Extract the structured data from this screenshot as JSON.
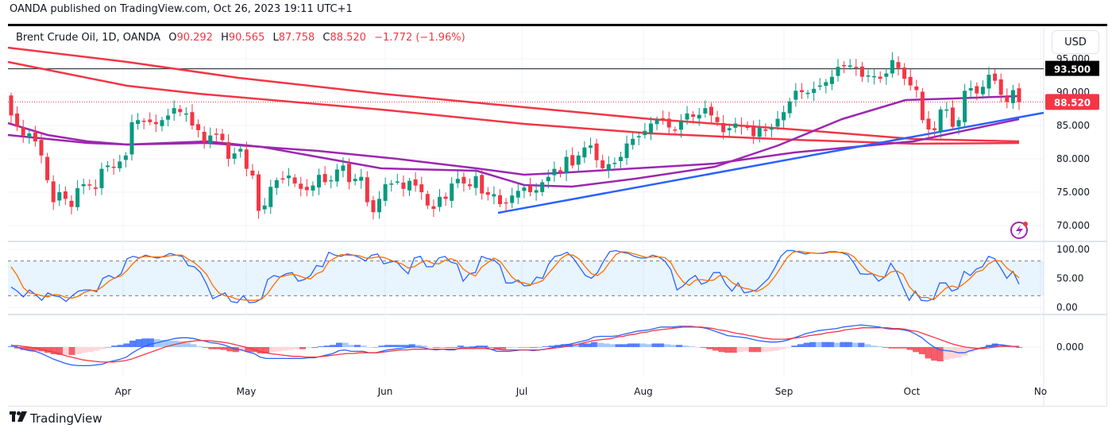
{
  "header": {
    "published": "OANDA published on TradingView.com, Oct 26, 2023 19:11 UTC+1"
  },
  "legend": {
    "symbol": "Brent Crude Oil, 1D, OANDA",
    "open_label": "O",
    "open": "90.292",
    "high_label": "H",
    "high": "90.565",
    "low_label": "L",
    "low": "87.758",
    "close_label": "C",
    "close": "88.520",
    "change": "−1.772",
    "change_pct": "(−1.96%)"
  },
  "currency_button": "USD",
  "footer": {
    "brand": "TradingView",
    "logo_mark": "17"
  },
  "colors": {
    "up": "#089981",
    "down": "#f23645",
    "sma_red": "#f23645",
    "sma_purple": "#9c27b0",
    "trendline": "#2962ff",
    "stoch_k": "#2962ff",
    "stoch_d": "#ff6d00",
    "macd": "#2962ff",
    "signal": "#f23645"
  },
  "chart_data": {
    "type": "candlestick",
    "title": "Brent Crude Oil, 1D, OANDA",
    "price_axis": {
      "ticks": [
        "95.000",
        "90.000",
        "85.000",
        "80.000",
        "75.000",
        "70.000"
      ],
      "tick_values": [
        95,
        90,
        85,
        80,
        75,
        70
      ],
      "range": [
        68,
        97.5
      ]
    },
    "horizontal_line": {
      "value": 93.5,
      "label": "93.500"
    },
    "last_price": {
      "value": 88.52,
      "label": "88.520"
    },
    "time_axis": {
      "labels": [
        "Apr",
        "May",
        "Jun",
        "Jul",
        "Aug",
        "Sep",
        "Oct",
        "No"
      ]
    },
    "closes": [
      86.5,
      84.8,
      83.5,
      83.8,
      82.6,
      80.5,
      76.8,
      73.5,
      75.0,
      74.0,
      72.8,
      75.6,
      76.2,
      76.0,
      75.5,
      78.5,
      79.0,
      78.8,
      79.6,
      80.5,
      85.5,
      85.8,
      85.6,
      85.5,
      85.2,
      85.8,
      86.5,
      87.6,
      87.0,
      86.8,
      85.0,
      84.3,
      82.5,
      83.5,
      83.7,
      82.8,
      80.0,
      80.8,
      81.5,
      78.5,
      77.5,
      72.2,
      73.0,
      75.8,
      76.8,
      77.0,
      77.5,
      76.3,
      75.5,
      75.3,
      76.0,
      77.6,
      76.5,
      76.8,
      78.4,
      79.0,
      76.5,
      77.0,
      77.3,
      73.5,
      72.0,
      74.0,
      76.2,
      76.3,
      76.6,
      75.5,
      76.7,
      76.0,
      75.0,
      73.0,
      72.5,
      74.3,
      74.0,
      76.3,
      77.0,
      76.3,
      75.9,
      77.4,
      74.8,
      74.6,
      74.7,
      73.2,
      73.3,
      74.5,
      75.2,
      75.7,
      75.0,
      75.3,
      76.5,
      77.3,
      78.5,
      78.0,
      80.3,
      79.0,
      80.5,
      81.7,
      82.0,
      79.8,
      78.6,
      79.2,
      79.4,
      80.3,
      82.3,
      83.0,
      83.4,
      84.2,
      85.3,
      85.8,
      86.0,
      84.7,
      84.3,
      85.6,
      86.8,
      86.3,
      86.6,
      87.6,
      86.5,
      85.5,
      84.0,
      84.6,
      85.3,
      84.8,
      84.7,
      83.4,
      84.7,
      84.2,
      84.6,
      86.0,
      87.0,
      88.6,
      90.2,
      90.0,
      89.9,
      90.5,
      91.0,
      91.5,
      92.3,
      93.8,
      94.0,
      94.0,
      93.6,
      92.3,
      92.5,
      92.4,
      92.0,
      92.8,
      94.8,
      93.6,
      92.0,
      91.0,
      90.3,
      85.8,
      84.4,
      84.3,
      87.4,
      87.4,
      84.8,
      85.8,
      90.2,
      90.6,
      89.8,
      90.8,
      92.6,
      91.7,
      89.6,
      88.5,
      90.3,
      88.5
    ],
    "series": [
      {
        "name": "SMA red (upper)",
        "start": 97.3,
        "end": 82.6
      },
      {
        "name": "SMA red (lower)",
        "start": 95.8,
        "end": 82.7
      },
      {
        "name": "SMA purple (fast)",
        "start": 86.0,
        "end": 89.5
      },
      {
        "name": "SMA purple (slow)",
        "start": 84.6,
        "end": 86.2
      },
      {
        "name": "Trendline",
        "from": [
          172,
          72.0
        ],
        "to": [
          999,
          87.2
        ]
      }
    ],
    "stochastic": {
      "axis_ticks": [
        "100.00",
        "50.00",
        "0.00"
      ],
      "bands": [
        80,
        20
      ],
      "k": [
        35,
        28,
        18,
        30,
        22,
        12,
        25,
        20,
        18,
        10,
        20,
        28,
        30,
        30,
        27,
        50,
        55,
        50,
        58,
        84,
        88,
        85,
        90,
        87,
        85,
        88,
        93,
        90,
        88,
        72,
        70,
        60,
        40,
        15,
        20,
        25,
        10,
        8,
        20,
        8,
        9,
        15,
        48,
        55,
        52,
        58,
        60,
        45,
        48,
        55,
        72,
        70,
        95,
        90,
        88,
        92,
        90,
        86,
        80,
        90,
        92,
        75,
        78,
        80,
        68,
        58,
        85,
        88,
        70,
        70,
        85,
        88,
        78,
        75,
        45,
        58,
        60,
        88,
        84,
        82,
        73,
        42,
        42,
        47,
        37,
        38,
        52,
        50,
        75,
        88,
        90,
        95,
        85,
        70,
        55,
        50,
        60,
        80,
        96,
        98,
        95,
        93,
        88,
        85,
        85,
        90,
        87,
        80,
        65,
        30,
        37,
        48,
        55,
        40,
        44,
        60,
        60,
        40,
        28,
        42,
        25,
        27,
        30,
        40,
        50,
        68,
        88,
        98,
        98,
        95,
        92,
        94,
        93,
        94,
        96,
        96,
        94,
        90,
        76,
        58,
        57,
        58,
        45,
        52,
        76,
        60,
        35,
        12,
        28,
        12,
        11,
        15,
        42,
        42,
        28,
        32,
        62,
        55,
        66,
        70,
        88,
        84,
        68,
        50,
        62,
        40
      ],
      "d": [
        70,
        55,
        34,
        25,
        23,
        20,
        18,
        22,
        21,
        17,
        16,
        19,
        26,
        29,
        29,
        36,
        45,
        51,
        54,
        64,
        76,
        86,
        88,
        87,
        87,
        87,
        89,
        90,
        90,
        83,
        77,
        68,
        57,
        38,
        25,
        20,
        18,
        14,
        13,
        12,
        12,
        14,
        24,
        39,
        52,
        55,
        57,
        55,
        51,
        49,
        58,
        62,
        79,
        85,
        91,
        90,
        90,
        89,
        85,
        85,
        87,
        86,
        82,
        78,
        75,
        68,
        70,
        77,
        81,
        76,
        75,
        81,
        84,
        80,
        66,
        59,
        54,
        69,
        77,
        85,
        80,
        66,
        52,
        44,
        42,
        39,
        42,
        46,
        59,
        71,
        84,
        91,
        90,
        83,
        70,
        58,
        55,
        63,
        78,
        91,
        96,
        95,
        92,
        89,
        86,
        87,
        87,
        86,
        77,
        58,
        44,
        38,
        47,
        48,
        46,
        47,
        55,
        53,
        43,
        37,
        33,
        31,
        27,
        32,
        40,
        53,
        69,
        85,
        95,
        97,
        95,
        94,
        93,
        93,
        95,
        95,
        95,
        93,
        87,
        75,
        64,
        58,
        54,
        52,
        61,
        63,
        57,
        36,
        25,
        17,
        17,
        13,
        23,
        33,
        37,
        34,
        41,
        50,
        61,
        64,
        75,
        81,
        80,
        68,
        60,
        51
      ]
    },
    "macd": {
      "axis_ticks": [
        "0.000"
      ],
      "macd": [
        0.3,
        0.0,
        -0.3,
        -0.5,
        -0.6,
        -0.9,
        -1.3,
        -1.7,
        -2.0,
        -2.3,
        -2.5,
        -2.6,
        -2.6,
        -2.6,
        -2.5,
        -2.4,
        -2.1,
        -1.9,
        -1.7,
        -1.4,
        -0.8,
        -0.3,
        0.1,
        0.4,
        0.6,
        0.8,
        1.0,
        1.2,
        1.3,
        1.3,
        1.2,
        1.0,
        0.8,
        0.6,
        0.5,
        0.3,
        0.0,
        -0.3,
        -0.4,
        -0.7,
        -0.9,
        -1.4,
        -1.6,
        -1.6,
        -1.6,
        -1.6,
        -1.6,
        -1.6,
        -1.6,
        -1.5,
        -1.5,
        -1.3,
        -1.1,
        -0.9,
        -0.5,
        -0.4,
        -0.6,
        -0.6,
        -0.6,
        -0.8,
        -0.8,
        -0.6,
        -0.4,
        -0.3,
        -0.2,
        -0.1,
        0.0,
        0.0,
        -0.1,
        -0.3,
        -0.4,
        -0.3,
        -0.4,
        -0.4,
        -0.1,
        -0.1,
        -0.1,
        0.0,
        0.0,
        -0.3,
        -0.6,
        -0.6,
        -0.6,
        -0.5,
        -0.4,
        -0.4,
        -0.5,
        -0.4,
        -0.3,
        -0.1,
        0.1,
        0.3,
        0.4,
        0.6,
        0.8,
        1.0,
        1.4,
        1.5,
        1.5,
        1.5,
        1.6,
        1.8,
        2.0,
        2.2,
        2.3,
        2.4,
        2.6,
        2.8,
        2.8,
        2.8,
        2.9,
        2.9,
        2.9,
        2.8,
        2.7,
        2.5,
        2.2,
        1.9,
        1.6,
        1.5,
        1.4,
        1.3,
        1.1,
        0.9,
        0.8,
        0.7,
        0.7,
        0.8,
        1.0,
        1.3,
        1.6,
        1.9,
        2.1,
        2.3,
        2.4,
        2.5,
        2.6,
        2.8,
        2.9,
        3.0,
        3.1,
        3.0,
        2.9,
        2.8,
        2.6,
        2.5,
        2.5,
        2.4,
        2.2,
        1.8,
        1.3,
        0.6,
        0.0,
        -0.4,
        -0.5,
        -0.6,
        -0.8,
        -0.8,
        -0.5,
        -0.3,
        -0.1,
        0.1,
        0.3,
        0.3,
        0.2,
        0.1,
        0.0
      ],
      "signal": [
        0.2,
        0.2,
        0.1,
        0.0,
        -0.1,
        -0.3,
        -0.5,
        -0.7,
        -0.9,
        -1.2,
        -1.4,
        -1.6,
        -1.8,
        -1.9,
        -2.0,
        -2.1,
        -2.1,
        -2.1,
        -2.0,
        -1.9,
        -1.7,
        -1.4,
        -1.1,
        -0.8,
        -0.5,
        -0.2,
        0.1,
        0.3,
        0.5,
        0.7,
        0.8,
        0.9,
        0.9,
        0.9,
        0.8,
        0.7,
        0.6,
        0.4,
        0.2,
        0.0,
        -0.2,
        -0.5,
        -0.7,
        -0.9,
        -1.0,
        -1.1,
        -1.2,
        -1.3,
        -1.3,
        -1.4,
        -1.4,
        -1.4,
        -1.3,
        -1.2,
        -1.1,
        -1.0,
        -0.9,
        -0.9,
        -0.8,
        -0.8,
        -0.8,
        -0.8,
        -0.7,
        -0.6,
        -0.5,
        -0.4,
        -0.4,
        -0.3,
        -0.3,
        -0.3,
        -0.3,
        -0.3,
        -0.3,
        -0.3,
        -0.3,
        -0.2,
        -0.2,
        -0.2,
        -0.2,
        -0.2,
        -0.3,
        -0.3,
        -0.4,
        -0.4,
        -0.4,
        -0.4,
        -0.4,
        -0.4,
        -0.4,
        -0.3,
        -0.2,
        -0.1,
        0.0,
        0.2,
        0.3,
        0.5,
        0.7,
        0.9,
        1.0,
        1.1,
        1.2,
        1.4,
        1.5,
        1.7,
        1.8,
        2.0,
        2.1,
        2.3,
        2.4,
        2.5,
        2.6,
        2.7,
        2.8,
        2.8,
        2.8,
        2.8,
        2.7,
        2.6,
        2.4,
        2.3,
        2.1,
        1.9,
        1.8,
        1.6,
        1.5,
        1.3,
        1.2,
        1.1,
        1.1,
        1.1,
        1.2,
        1.3,
        1.4,
        1.6,
        1.7,
        1.8,
        2.0,
        2.1,
        2.2,
        2.4,
        2.5,
        2.6,
        2.7,
        2.7,
        2.7,
        2.7,
        2.7,
        2.6,
        2.6,
        2.5,
        2.3,
        2.2,
        1.9,
        1.6,
        1.3,
        1.0,
        0.7,
        0.4,
        0.2,
        0.0,
        -0.1,
        -0.2,
        -0.2,
        -0.1,
        0.0,
        0.1,
        0.1,
        0.1,
        0.1
      ]
    }
  }
}
